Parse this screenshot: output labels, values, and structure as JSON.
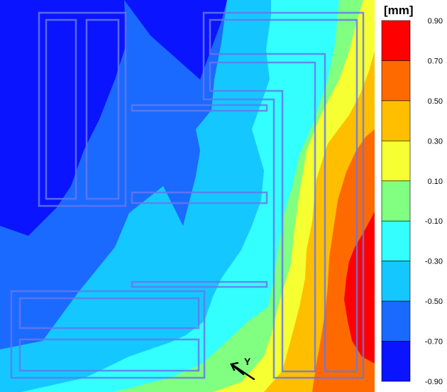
{
  "legend": {
    "unit": "[mm]",
    "ticks": [
      "0.90",
      "0.70",
      "0.50",
      "0.30",
      "0.10",
      "-0.10",
      "-0.30",
      "-0.50",
      "-0.70",
      "-0.90"
    ],
    "colors": [
      "#ff0000",
      "#ff6a00",
      "#ffbf00",
      "#f5ff32",
      "#80ff80",
      "#33ffff",
      "#14c8ff",
      "#1a6aff",
      "#0a14ff"
    ]
  },
  "axis": {
    "label": "Y"
  }
}
